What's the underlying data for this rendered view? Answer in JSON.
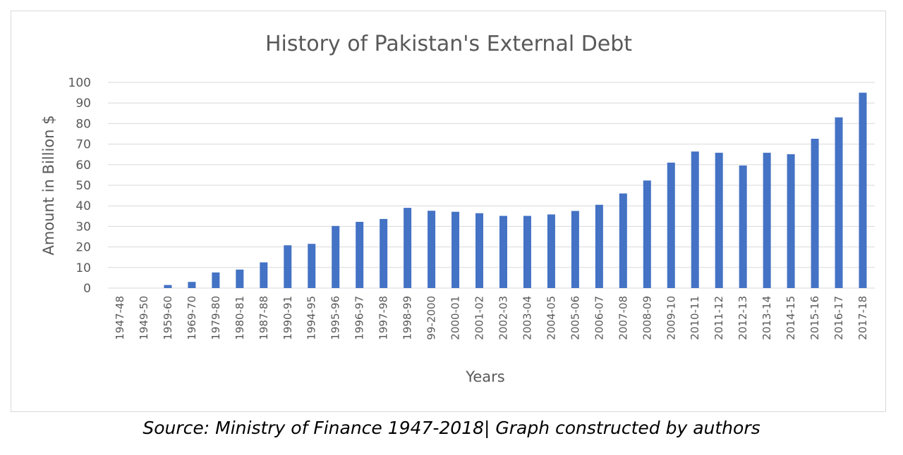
{
  "caption": "Source: Ministry of Finance 1947-2018| Graph constructed by authors",
  "chart_data": {
    "type": "bar",
    "title": "History of Pakistan's External Debt",
    "xlabel": "Years",
    "ylabel": "Amount in Billion $",
    "ylim": [
      0,
      100
    ],
    "yticks": [
      0,
      10,
      20,
      30,
      40,
      50,
      60,
      70,
      80,
      90,
      100
    ],
    "grid": true,
    "legend": "none",
    "bar_color": "#4472c4",
    "categories": [
      "1947-48",
      "1949-50",
      "1959-60",
      "1969-70",
      "1979-80",
      "1980-81",
      "1987-88",
      "1990-91",
      "1994-95",
      "1995-96",
      "1996-97",
      "1997-98",
      "1998-99",
      "99-2000",
      "2000-01",
      "2001-02",
      "2002-03",
      "2003-04",
      "2004-05",
      "2005-06",
      "2006-07",
      "2007-08",
      "2008-09",
      "2009-10",
      "2010-11",
      "2011-12",
      "2012-13",
      "2013-14",
      "2014-15",
      "2015-16",
      "2016-17",
      "2017-18"
    ],
    "values": [
      0,
      0,
      1.5,
      3,
      7.6,
      9,
      12.5,
      20.8,
      21.5,
      30.2,
      32.2,
      33.6,
      39,
      37.6,
      37.1,
      36.4,
      35.1,
      35.1,
      35.8,
      37.5,
      40.5,
      46,
      52.3,
      61,
      66.4,
      65.8,
      59.6,
      65.8,
      65.1,
      72.6,
      83,
      95
    ]
  }
}
